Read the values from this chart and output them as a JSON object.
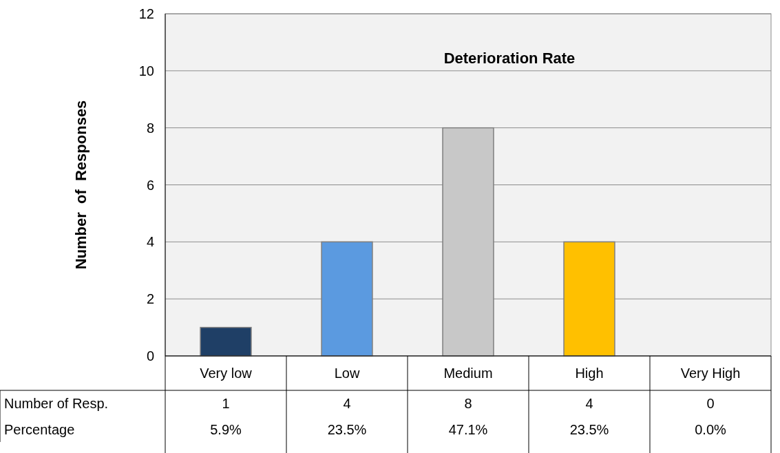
{
  "chart_data": {
    "type": "bar",
    "title": "Deterioration Rate",
    "ylabel": "Number  of  Responses",
    "categories": [
      "Very low",
      "Low",
      "Medium",
      "High",
      "Very High"
    ],
    "values": [
      1,
      4,
      8,
      4,
      0
    ],
    "colors": [
      "#1f3f66",
      "#5b9ae0",
      "#c8c8c8",
      "#ffc000",
      "#888888"
    ],
    "ylim": [
      0,
      12
    ],
    "yticks": [
      0,
      2,
      4,
      6,
      8,
      10,
      12
    ],
    "grid": "y",
    "data_labels": true,
    "annotations": [
      "Number of Resp.",
      "Percentage",
      "5.9%",
      "23.5%",
      "47.1%",
      "23.5%",
      "0.0%"
    ]
  }
}
